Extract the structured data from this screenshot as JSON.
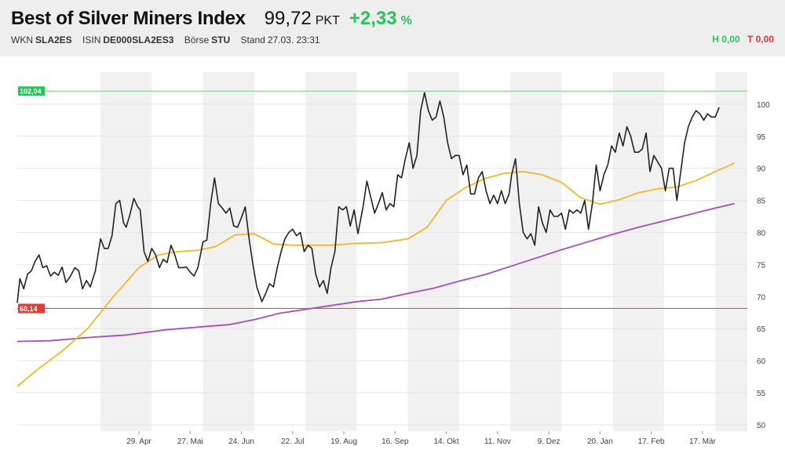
{
  "header": {
    "title": "Best of Silver Miners Index",
    "price": "99,72",
    "price_unit": "PKT",
    "change": "+2,33",
    "change_unit": "%",
    "wkn_label": "WKN",
    "wkn": "SLA2ES",
    "isin_label": "ISIN",
    "isin": "DE000SLA2ES3",
    "exchange_label": "Börse",
    "exchange": "STU",
    "stand_label": "Stand",
    "stand": "27.03. 23:31",
    "high_label": "H 0,00",
    "low_label": "T 0,00"
  },
  "colors": {
    "price_line": "#222222",
    "ma_fast": "#f5b820",
    "ma_slow": "#a64dc4",
    "high_line": "#7fd67f",
    "low_line": "#d9534f",
    "positive": "#2cc35a",
    "negative": "#e53935",
    "band": "#f1f1f1"
  },
  "chart_data": {
    "type": "line",
    "title": "",
    "xlabel": "",
    "ylabel": "",
    "ylim": [
      49,
      105
    ],
    "yticks": [
      50,
      55,
      60,
      65,
      70,
      75,
      80,
      85,
      90,
      95,
      100
    ],
    "grid": true,
    "x_ticks": [
      "29. Apr",
      "27. Mai",
      "24. Jun",
      "22. Jul",
      "19. Aug",
      "16. Sep",
      "14. Okt",
      "11. Nov",
      "9. Dez",
      "20. Jan",
      "17. Feb",
      "17. Mär"
    ],
    "x_tick_pos": [
      13,
      17,
      21,
      25,
      29,
      33,
      37,
      41,
      45,
      49,
      53,
      57
    ],
    "x_range": [
      3.5,
      60.5
    ],
    "bands": [
      [
        10,
        14
      ],
      [
        18,
        22
      ],
      [
        26,
        30
      ],
      [
        34,
        38
      ],
      [
        42,
        46
      ],
      [
        50,
        54
      ],
      [
        58,
        60.5
      ]
    ],
    "reference_lines": [
      {
        "value": 102.04,
        "label": "102,04",
        "color": "#7fd67f",
        "label_bg": "#2cc35a"
      },
      {
        "value": 68.14,
        "label": "68,14",
        "color": "#d9534f",
        "label_bg": "#e53935"
      }
    ],
    "series": [
      {
        "values": [
          [
            3.5,
            69
          ],
          [
            3.7,
            72.8
          ],
          [
            4.0,
            71.2
          ],
          [
            4.3,
            73.5
          ],
          [
            4.6,
            74.0
          ],
          [
            4.9,
            75.5
          ],
          [
            5.2,
            76.5
          ],
          [
            5.5,
            74.5
          ],
          [
            5.8,
            74.8
          ],
          [
            6.1,
            73.2
          ],
          [
            6.4,
            73.8
          ],
          [
            6.7,
            73.3
          ],
          [
            7.0,
            74.6
          ],
          [
            7.3,
            72.2
          ],
          [
            7.6,
            73.0
          ],
          [
            8.0,
            74.5
          ],
          [
            8.3,
            74.0
          ],
          [
            8.6,
            71.2
          ],
          [
            8.9,
            72.5
          ],
          [
            9.2,
            71.5
          ],
          [
            9.6,
            74.0
          ],
          [
            10.0,
            79.0
          ],
          [
            10.3,
            77.5
          ],
          [
            10.6,
            77.5
          ],
          [
            10.9,
            79.5
          ],
          [
            11.2,
            84.5
          ],
          [
            11.5,
            85.0
          ],
          [
            11.8,
            81.5
          ],
          [
            12.0,
            80.8
          ],
          [
            12.3,
            82.8
          ],
          [
            12.6,
            85.3
          ],
          [
            12.9,
            84.0
          ],
          [
            13.1,
            83.5
          ],
          [
            13.4,
            77.0
          ],
          [
            13.7,
            75.5
          ],
          [
            14.0,
            77.5
          ],
          [
            14.3,
            76.5
          ],
          [
            14.6,
            74.5
          ],
          [
            14.9,
            75.8
          ],
          [
            15.2,
            75.3
          ],
          [
            15.5,
            78.0
          ],
          [
            15.8,
            76.5
          ],
          [
            16.1,
            74.5
          ],
          [
            16.4,
            74.5
          ],
          [
            16.7,
            74.6
          ],
          [
            17.0,
            73.8
          ],
          [
            17.3,
            73.2
          ],
          [
            17.6,
            74.5
          ],
          [
            18.0,
            78.5
          ],
          [
            18.3,
            78.8
          ],
          [
            18.6,
            84.5
          ],
          [
            18.9,
            88.5
          ],
          [
            19.2,
            84.5
          ],
          [
            19.5,
            83.8
          ],
          [
            19.8,
            83.0
          ],
          [
            20.1,
            83.8
          ],
          [
            20.4,
            81.0
          ],
          [
            20.7,
            80.8
          ],
          [
            21.0,
            82.3
          ],
          [
            21.3,
            84.0
          ],
          [
            21.6,
            79.0
          ],
          [
            21.9,
            75.0
          ],
          [
            22.2,
            71.5
          ],
          [
            22.6,
            69.2
          ],
          [
            22.9,
            70.5
          ],
          [
            23.2,
            72.0
          ],
          [
            23.5,
            71.5
          ],
          [
            23.8,
            74.5
          ],
          [
            24.1,
            77.0
          ],
          [
            24.4,
            79.0
          ],
          [
            24.7,
            80.0
          ],
          [
            25.0,
            80.5
          ],
          [
            25.3,
            79.5
          ],
          [
            25.6,
            80.0
          ],
          [
            25.9,
            77.0
          ],
          [
            26.2,
            78.0
          ],
          [
            26.5,
            77.5
          ],
          [
            26.8,
            73.5
          ],
          [
            27.1,
            71.5
          ],
          [
            27.4,
            72.5
          ],
          [
            27.7,
            70.5
          ],
          [
            28.0,
            74.5
          ],
          [
            28.3,
            77.0
          ],
          [
            28.6,
            84.0
          ],
          [
            28.9,
            83.5
          ],
          [
            29.2,
            84.0
          ],
          [
            29.5,
            81.0
          ],
          [
            29.8,
            83.5
          ],
          [
            30.1,
            79.8
          ],
          [
            30.5,
            84.0
          ],
          [
            30.8,
            88.0
          ],
          [
            31.1,
            85.5
          ],
          [
            31.4,
            83.0
          ],
          [
            31.7,
            84.5
          ],
          [
            32.0,
            86.2
          ],
          [
            32.3,
            83.5
          ],
          [
            32.6,
            84.5
          ],
          [
            32.9,
            84.0
          ],
          [
            33.2,
            89.0
          ],
          [
            33.5,
            88.5
          ],
          [
            33.8,
            91.5
          ],
          [
            34.1,
            94.0
          ],
          [
            34.4,
            90.0
          ],
          [
            34.7,
            92.0
          ],
          [
            35.0,
            99.0
          ],
          [
            35.3,
            101.8
          ],
          [
            35.6,
            99.0
          ],
          [
            35.9,
            97.5
          ],
          [
            36.2,
            98.0
          ],
          [
            36.5,
            100.5
          ],
          [
            36.8,
            98.0
          ],
          [
            37.1,
            94.0
          ],
          [
            37.4,
            91.5
          ],
          [
            37.7,
            92.0
          ],
          [
            38.0,
            92.0
          ],
          [
            38.3,
            89.0
          ],
          [
            38.6,
            90.5
          ],
          [
            38.9,
            86.0
          ],
          [
            39.2,
            86.0
          ],
          [
            39.5,
            88.5
          ],
          [
            39.8,
            89.5
          ],
          [
            40.1,
            86.5
          ],
          [
            40.4,
            84.5
          ],
          [
            40.7,
            85.8
          ],
          [
            41.0,
            84.5
          ],
          [
            41.3,
            86.5
          ],
          [
            41.6,
            84.5
          ],
          [
            41.9,
            86.0
          ],
          [
            42.1,
            89.0
          ],
          [
            42.4,
            91.5
          ],
          [
            42.7,
            84.5
          ],
          [
            43.0,
            80.0
          ],
          [
            43.3,
            79.0
          ],
          [
            43.6,
            79.8
          ],
          [
            43.9,
            78.0
          ],
          [
            44.2,
            84.0
          ],
          [
            44.5,
            81.5
          ],
          [
            44.8,
            80.0
          ],
          [
            45.1,
            83.5
          ],
          [
            45.4,
            82.5
          ],
          [
            45.7,
            82.5
          ],
          [
            46.0,
            83.0
          ],
          [
            46.3,
            80.5
          ],
          [
            46.6,
            83.5
          ],
          [
            46.9,
            83.0
          ],
          [
            47.2,
            83.5
          ],
          [
            47.5,
            83.0
          ],
          [
            47.8,
            85.0
          ],
          [
            48.1,
            80.5
          ],
          [
            48.4,
            84.5
          ],
          [
            48.7,
            90.5
          ],
          [
            49.0,
            86.5
          ],
          [
            49.3,
            89.0
          ],
          [
            49.6,
            90.5
          ],
          [
            49.9,
            93.5
          ],
          [
            50.2,
            92.5
          ],
          [
            50.5,
            95.5
          ],
          [
            50.8,
            93.5
          ],
          [
            51.1,
            96.5
          ],
          [
            51.4,
            95.0
          ],
          [
            51.7,
            92.5
          ],
          [
            52.0,
            92.5
          ],
          [
            52.3,
            93.0
          ],
          [
            52.6,
            95.5
          ],
          [
            52.9,
            89.5
          ],
          [
            53.2,
            92.0
          ],
          [
            53.5,
            91.0
          ],
          [
            53.8,
            90.0
          ],
          [
            54.1,
            86.5
          ],
          [
            54.4,
            90.0
          ],
          [
            54.7,
            90.0
          ],
          [
            55.0,
            85.0
          ],
          [
            55.3,
            89.5
          ],
          [
            55.6,
            94.0
          ],
          [
            55.9,
            96.5
          ],
          [
            56.2,
            98.0
          ],
          [
            56.5,
            99.0
          ],
          [
            56.8,
            98.5
          ],
          [
            57.1,
            97.5
          ],
          [
            57.4,
            98.5
          ],
          [
            57.7,
            98.0
          ],
          [
            58.0,
            98.0
          ],
          [
            58.3,
            99.5
          ]
        ]
      },
      {
        "values": [
          [
            3.5,
            56.0
          ],
          [
            5,
            58.5
          ],
          [
            7,
            61.5
          ],
          [
            9,
            65.0
          ],
          [
            11,
            70.0
          ],
          [
            13,
            74.5
          ],
          [
            14.5,
            76.5
          ],
          [
            16,
            77.0
          ],
          [
            17.5,
            77.2
          ],
          [
            19,
            77.8
          ],
          [
            20.5,
            79.6
          ],
          [
            22,
            79.8
          ],
          [
            23.5,
            78.2
          ],
          [
            25,
            78.0
          ],
          [
            26.5,
            78.0
          ],
          [
            28,
            78.0
          ],
          [
            30,
            78.3
          ],
          [
            32,
            78.4
          ],
          [
            34,
            79.0
          ],
          [
            35.5,
            80.8
          ],
          [
            37,
            85.0
          ],
          [
            38.5,
            87.0
          ],
          [
            40,
            88.4
          ],
          [
            41.5,
            89.2
          ],
          [
            43,
            89.5
          ],
          [
            44.5,
            89.0
          ],
          [
            46,
            87.8
          ],
          [
            47.5,
            85.4
          ],
          [
            49,
            84.4
          ],
          [
            50.5,
            85.1
          ],
          [
            52,
            86.2
          ],
          [
            53.5,
            86.8
          ],
          [
            55,
            87.1
          ],
          [
            56.5,
            88.1
          ],
          [
            58,
            89.5
          ],
          [
            59.5,
            90.8
          ]
        ]
      },
      {
        "values": [
          [
            3.5,
            63.0
          ],
          [
            6,
            63.1
          ],
          [
            9,
            63.6
          ],
          [
            12,
            64.0
          ],
          [
            15,
            64.8
          ],
          [
            18,
            65.3
          ],
          [
            20,
            65.6
          ],
          [
            22,
            66.4
          ],
          [
            24,
            67.4
          ],
          [
            26,
            68.0
          ],
          [
            28,
            68.6
          ],
          [
            30,
            69.2
          ],
          [
            32,
            69.6
          ],
          [
            34,
            70.5
          ],
          [
            36,
            71.3
          ],
          [
            38,
            72.4
          ],
          [
            40,
            73.4
          ],
          [
            42,
            74.7
          ],
          [
            44,
            76.0
          ],
          [
            46,
            77.3
          ],
          [
            48,
            78.5
          ],
          [
            50,
            79.7
          ],
          [
            52,
            80.8
          ],
          [
            54,
            81.8
          ],
          [
            56,
            82.8
          ],
          [
            58,
            83.8
          ],
          [
            59.5,
            84.5
          ]
        ]
      }
    ]
  }
}
